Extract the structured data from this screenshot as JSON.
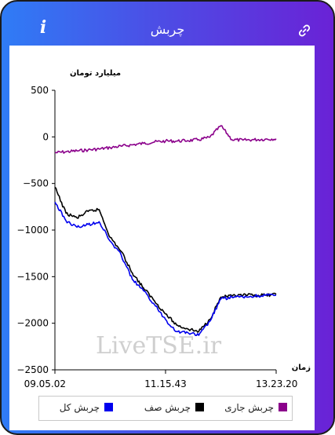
{
  "header": {
    "title": "چربش",
    "info_icon_glyph": "i",
    "info_icon": "info-icon",
    "link_icon": "link-icon"
  },
  "chart_data": {
    "type": "line",
    "ylabel": "میلیارد تومان",
    "xlabel": "زمان",
    "ylim": [
      -2500,
      500
    ],
    "yticks": [
      500,
      0,
      -500,
      -1000,
      -1500,
      -2000,
      -2500
    ],
    "ytick_labels": [
      "500",
      "0",
      "−500",
      "−1000",
      "−1500",
      "−2000",
      "−2500"
    ],
    "xtick_labels": [
      "09.05.02",
      "11.15.43",
      "13.23.20"
    ],
    "watermark": "LiveTSE.ir",
    "x": [
      0,
      5,
      10,
      15,
      20,
      25,
      30,
      35,
      40,
      45,
      50,
      55,
      60,
      65,
      70,
      75,
      80,
      85,
      90,
      95,
      100
    ],
    "series": [
      {
        "name": "چربش جاری",
        "color": "#8b008b",
        "values": [
          -170,
          -160,
          -150,
          -140,
          -130,
          -115,
          -100,
          -85,
          -70,
          -55,
          -45,
          -45,
          -40,
          -30,
          -5,
          120,
          -30,
          -35,
          -30,
          -25,
          -20
        ]
      },
      {
        "name": "چربش صف",
        "color": "#000000",
        "values": [
          -540,
          -820,
          -870,
          -800,
          -780,
          -1080,
          -1230,
          -1460,
          -1620,
          -1760,
          -1900,
          -2020,
          -2060,
          -2090,
          -1960,
          -1720,
          -1710,
          -1700,
          -1700,
          -1700,
          -1690
        ]
      },
      {
        "name": "چربش کل",
        "color": "#0000ee",
        "values": [
          -700,
          -900,
          -970,
          -940,
          -910,
          -1120,
          -1270,
          -1530,
          -1650,
          -1800,
          -1960,
          -2090,
          -2100,
          -2130,
          -1980,
          -1740,
          -1720,
          -1720,
          -1710,
          -1700,
          -1700
        ]
      }
    ],
    "legend": {
      "placement": "bottom",
      "items": [
        "چربش جاری",
        "چربش صف",
        "چربش کل"
      ]
    }
  }
}
